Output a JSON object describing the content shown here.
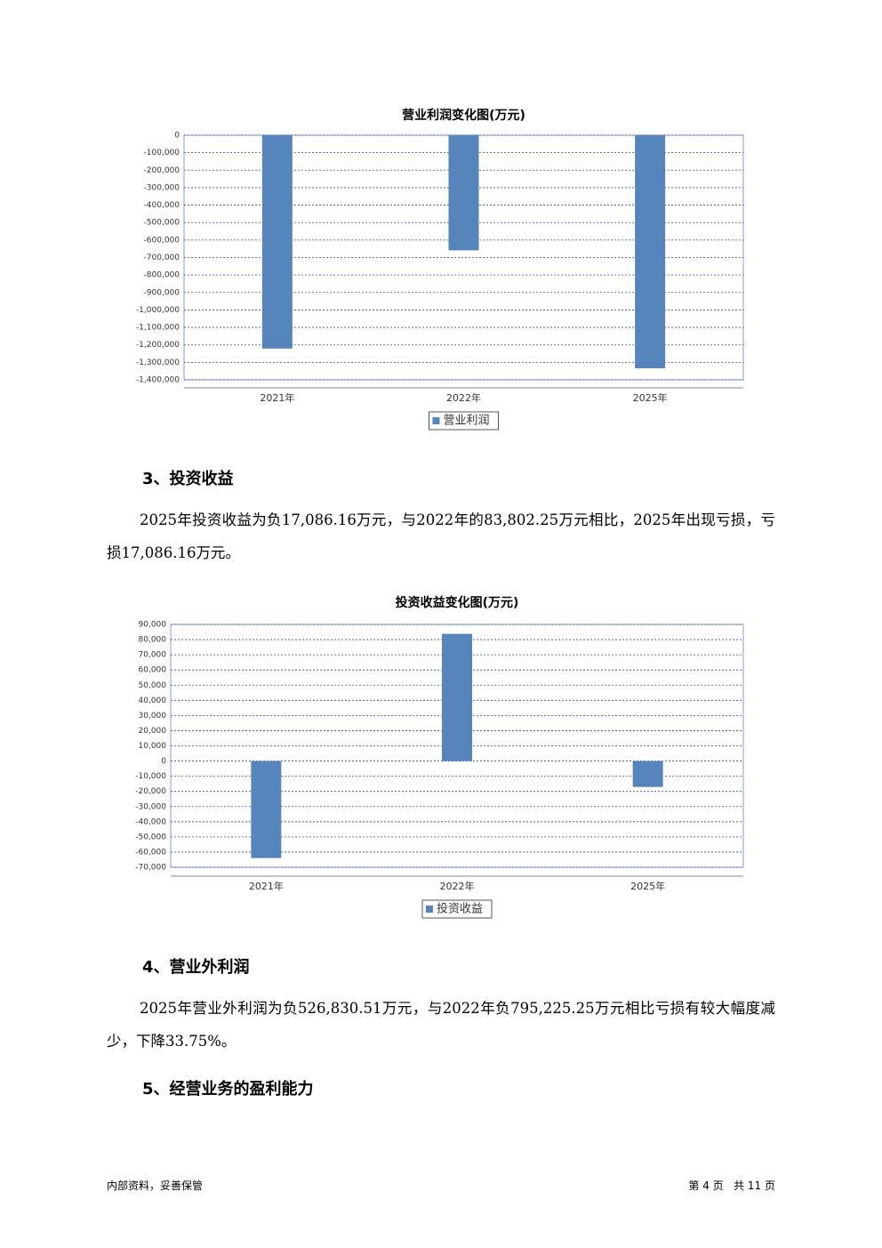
{
  "chart_data": [
    {
      "type": "bar",
      "title": "营业利润变化图(万元)",
      "categories": [
        "2021年",
        "2022年",
        "2025年"
      ],
      "series": [
        {
          "name": "营业利润",
          "color": "#5585bb",
          "values": [
            -1221000,
            -659000,
            -1334000
          ]
        }
      ],
      "ylim": [
        -1400000,
        0
      ],
      "yticks": [
        0,
        {
          "value": -100000,
          "label": "-100,000"
        },
        {
          "value": -200000,
          "label": "-200,000"
        },
        {
          "value": -300000,
          "label": "-300,000"
        },
        {
          "value": -400000,
          "label": "-400,000"
        },
        {
          "value": -500000,
          "label": "-500,000"
        },
        {
          "value": -600000,
          "label": "-600,000"
        },
        {
          "value": -700000,
          "label": "-700,000"
        },
        {
          "value": -800000,
          "label": "-800,000"
        },
        {
          "value": -900000,
          "label": "-900,000"
        },
        {
          "value": -1000000,
          "label": "-1,000,000"
        },
        {
          "value": -1100000,
          "label": "-1,100,000"
        },
        {
          "value": -1200000,
          "label": "-1,200,000"
        },
        {
          "value": -1300000,
          "label": "-1,300,000"
        },
        {
          "value": -1400000,
          "label": "-1,400,000"
        }
      ],
      "grid": true,
      "legend": "bottom"
    },
    {
      "type": "bar",
      "title": "投资收益变化图(万元)",
      "categories": [
        "2021年",
        "2022年",
        "2025年"
      ],
      "series": [
        {
          "name": "投资收益",
          "color": "#5585bb",
          "values": [
            -63900,
            83802.25,
            -17086.16
          ]
        }
      ],
      "ylim": [
        -70000,
        90000
      ],
      "yticks": [
        {
          "value": 90000,
          "label": "90,000"
        },
        {
          "value": 80000,
          "label": "80,000"
        },
        {
          "value": 70000,
          "label": "70,000"
        },
        {
          "value": 60000,
          "label": "60,000"
        },
        {
          "value": 50000,
          "label": "50,000"
        },
        {
          "value": 40000,
          "label": "40,000"
        },
        {
          "value": 30000,
          "label": "30,000"
        },
        {
          "value": 20000,
          "label": "20,000"
        },
        {
          "value": 10000,
          "label": "10,000"
        },
        0,
        {
          "value": -10000,
          "label": "-10,000"
        },
        {
          "value": -20000,
          "label": "-20,000"
        },
        {
          "value": -30000,
          "label": "-30,000"
        },
        {
          "value": -40000,
          "label": "-40,000"
        },
        {
          "value": -50000,
          "label": "-50,000"
        },
        {
          "value": -60000,
          "label": "-60,000"
        },
        {
          "value": -70000,
          "label": "-70,000"
        }
      ],
      "grid": true,
      "legend": "bottom"
    }
  ],
  "sections": [
    {
      "heading": "3、投资收益",
      "text": "2025年投资收益为负17,086.16万元，与2022年的83,802.25万元相比，2025年出现亏损，亏损17,086.16万元。"
    },
    {
      "heading": "4、营业外利润",
      "text": "2025年营业外利润为负526,830.51万元，与2022年负795,225.25万元相比亏损有较大幅度减少，下降33.75%。"
    },
    {
      "heading": "5、经营业务的盈利能力"
    }
  ],
  "footer": {
    "left": "内部资料，妥善保管",
    "right": "第 4 页   共 11 页"
  }
}
